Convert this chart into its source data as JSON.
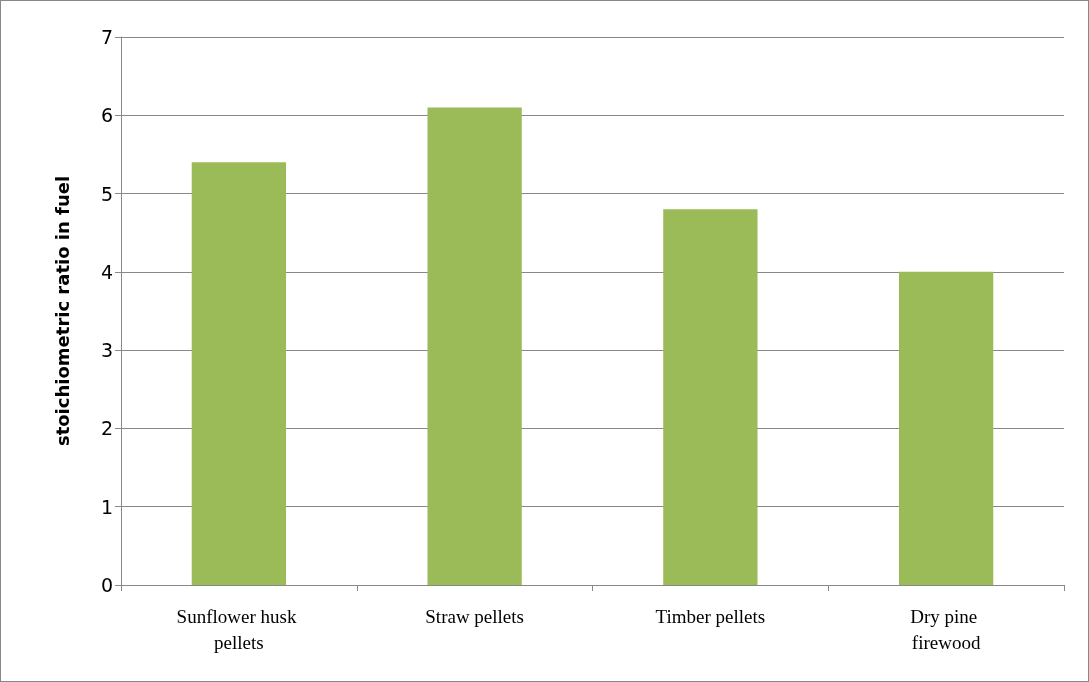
{
  "chart_data": {
    "type": "bar",
    "ylabel": "stoichiometric ratio in fuel",
    "categories": [
      "Sunflower husk pellets",
      "Straw pellets",
      "Timber pellets",
      "Dry pine firewood"
    ],
    "values": [
      5.4,
      6.1,
      4.8,
      4.0
    ],
    "color": "#9bbb59",
    "ylim": [
      0,
      7
    ],
    "yticks": [
      0,
      1,
      2,
      3,
      4,
      5,
      6,
      7
    ],
    "grid": "y"
  }
}
